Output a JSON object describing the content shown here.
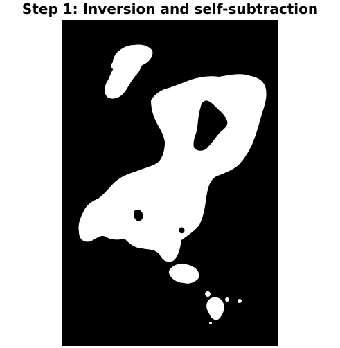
{
  "figure": {
    "title": "Step 1: Inversion and self-subtraction"
  },
  "image": {
    "description_kind": "binary-mask",
    "background_color": "#000000",
    "foreground_color": "#ffffff"
  }
}
